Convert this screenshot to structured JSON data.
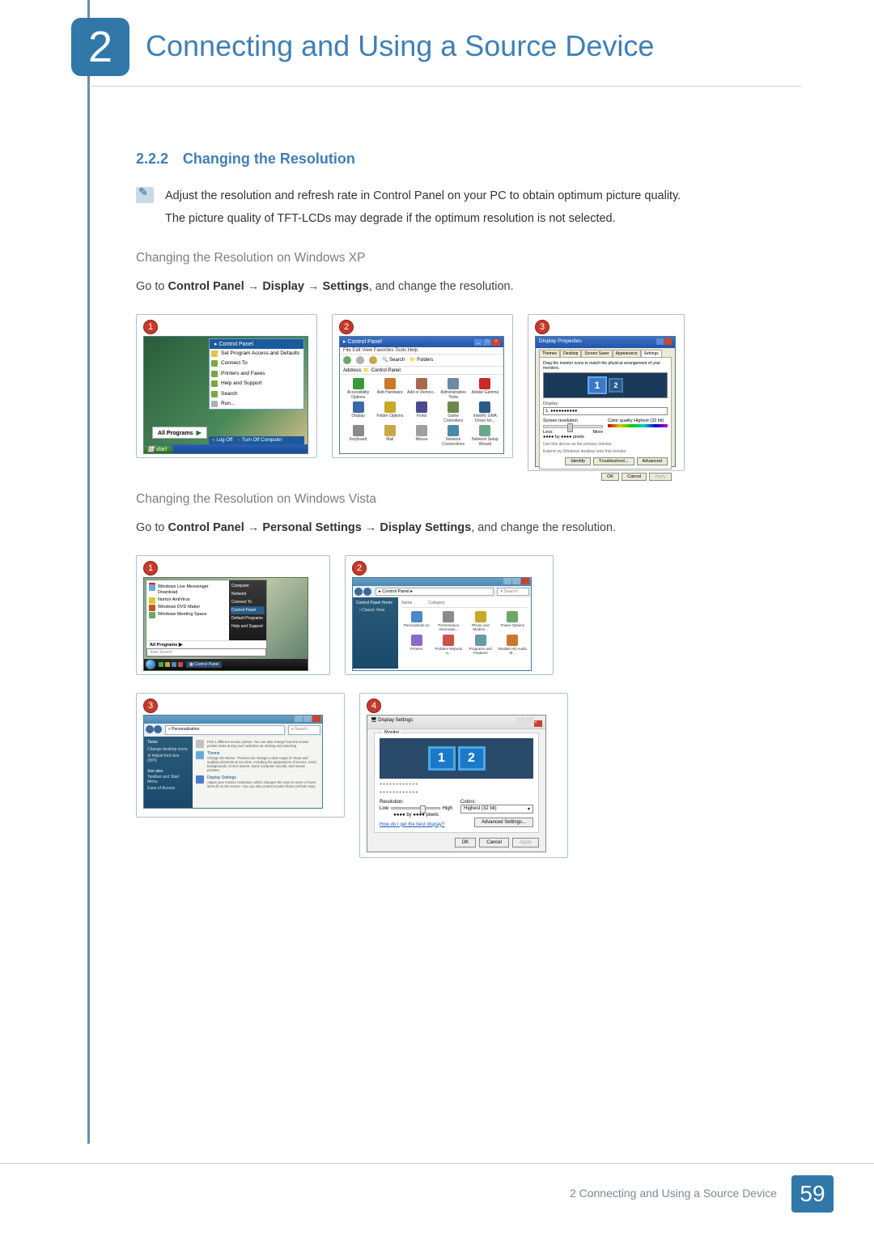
{
  "chapter": {
    "number": "2",
    "title": "Connecting and Using a Source Device"
  },
  "section": {
    "number": "2.2.2",
    "title": "Changing the Resolution"
  },
  "note": {
    "line1": "Adjust the resolution and refresh rate in Control Panel on your PC to obtain optimum picture quality.",
    "line2": "The picture quality of TFT-LCDs may degrade if the optimum resolution is not selected."
  },
  "xp": {
    "heading": "Changing the Resolution on Windows XP",
    "instr_pre": "Go to ",
    "instr_b1": "Control Panel",
    "instr_arrow": " → ",
    "instr_b2": "Display",
    "instr_b3": "Settings",
    "instr_post": ", and change the resolution.",
    "s1": {
      "badge": "1",
      "menu_header": "Control Panel",
      "items": [
        "Set Program Access and Defaults",
        "Connect To",
        "Printers and Faxes",
        "Help and Support",
        "Search",
        "Run..."
      ],
      "all_programs": "All Programs",
      "logoff": "Log Off",
      "turnoff": "Turn Off Computer",
      "start": "start"
    },
    "s2": {
      "badge": "2",
      "title": "Control Panel",
      "menus": "File  Edit  View  Favorites  Tools  Help",
      "toolbar_search": "Search",
      "toolbar_folders": "Folders",
      "addr_label": "Address",
      "addr_value": "Control Panel",
      "icons": [
        {
          "l": "Accessibility Options",
          "c": "#3a9a3a"
        },
        {
          "l": "Add Hardware",
          "c": "#c87a2a"
        },
        {
          "l": "Add or Remov...",
          "c": "#a86a4a"
        },
        {
          "l": "Administrative Tools",
          "c": "#6a8aa8"
        },
        {
          "l": "Adobe Gamma",
          "c": "#c82a2a"
        },
        {
          "l": "Display",
          "c": "#3a6aa8"
        },
        {
          "l": "Folder Options",
          "c": "#c8a82a"
        },
        {
          "l": "Fonts",
          "c": "#4a4a8a"
        },
        {
          "l": "Game Controllers",
          "c": "#6a8a4a"
        },
        {
          "l": "Intel(R) GMA Driver for...",
          "c": "#2a5a8a"
        },
        {
          "l": "Keyboard",
          "c": "#8a8a8a"
        },
        {
          "l": "Mail",
          "c": "#c8a84a"
        },
        {
          "l": "Mouse",
          "c": "#a0a0a0"
        },
        {
          "l": "Network Connections",
          "c": "#4a8aa8"
        },
        {
          "l": "Network Setup Wizard",
          "c": "#6aa88a"
        }
      ]
    },
    "s3": {
      "badge": "3",
      "title": "Display Properties",
      "tabs": [
        "Themes",
        "Desktop",
        "Screen Saver",
        "Appearance",
        "Settings"
      ],
      "arrange": "Drag the monitor icons to match the physical arrangement of your monitors.",
      "mon1": "1",
      "mon2": "2",
      "display_label": "Display:",
      "display_value": "1. ●●●●●●●●●●",
      "res_label": "Screen resolution",
      "res_less": "Less",
      "res_more": "More",
      "res_value": "●●●● by ●●●● pixels",
      "color_label": "Color quality",
      "color_value": "Highest (32 bit)",
      "check1": "Use this device as the primary monitor",
      "check2": "Extend my Windows desktop onto this monitor",
      "btn_identify": "Identify",
      "btn_trouble": "Troubleshoot...",
      "btn_adv": "Advanced",
      "btn_ok": "OK",
      "btn_cancel": "Cancel",
      "btn_apply": "Apply"
    }
  },
  "vista": {
    "heading": "Changing the Resolution on Windows Vista",
    "instr_pre": "Go to ",
    "instr_b1": "Control Panel",
    "instr_b2": "Personal Settings",
    "instr_b3": "Display Settings",
    "instr_arrow": " → ",
    "instr_post": ", and change the resolution.",
    "s1": {
      "badge": "1",
      "left_items": [
        {
          "l": "",
          "c": "#c82a2a"
        },
        {
          "l": "Windows Live Messenger Download",
          "c": "#6aa8d8"
        },
        {
          "l": "Norton AntiVirus",
          "c": "#d8c82a"
        },
        {
          "l": "Windows DVD Maker",
          "c": "#c8532a"
        },
        {
          "l": "Windows Meeting Space",
          "c": "#6aa86a"
        }
      ],
      "allprog": "All Programs",
      "search_ph": "Start Search",
      "right_items": [
        "Computer",
        "Network",
        "Connect To",
        "Control Panel",
        "Default Programs",
        "Help and Support"
      ],
      "taskbar_item": "Control Panel",
      "ticon_colors": [
        "#4aa84a",
        "#c8a82a",
        "#4a8ac8",
        "#c84a4a"
      ]
    },
    "s2": {
      "badge": "2",
      "path": "▸ Control Panel ▸",
      "search": "Search",
      "side_header": "Control Panel Home",
      "side_items": [
        "Classic View"
      ],
      "col1": "Name",
      "col2": "Category",
      "icons": [
        {
          "l": "Personalizati on",
          "c": "#4a8ac8"
        },
        {
          "l": "Performance Informatio...",
          "c": "#8a8a8a"
        },
        {
          "l": "Phone and Modem...",
          "c": "#c8a82a"
        },
        {
          "l": "Power Options",
          "c": "#6aa86a"
        },
        {
          "l": "Printers",
          "c": "#8a6ac8"
        },
        {
          "l": "Problem Reports a...",
          "c": "#c8534a"
        },
        {
          "l": "Programs and Features",
          "c": "#6a9aa8"
        },
        {
          "l": "Realtek HD Audio M...",
          "c": "#c87a2a"
        }
      ]
    },
    "s3": {
      "badge": "3",
      "path": "« Personalization",
      "search": "Search",
      "tasks_header": "Tasks",
      "tasks": [
        "Change desktop icons",
        "Adjust font size (DPI)"
      ],
      "see_also": "See also",
      "see_items": [
        "Taskbar and Start Menu",
        "Ease of Access"
      ],
      "entries": [
        {
          "t": "",
          "d": "Pick a different mouse pointer. You can also change how the mouse pointer looks during such activities as clicking and selecting.",
          "c": "#c0c0c0"
        },
        {
          "t": "Theme",
          "d": "Change the theme. Themes can change a wide range of visual and auditory elements at one time, including the appearance of menus, icons, backgrounds, screen savers, some computer sounds, and mouse pointers.",
          "c": "#6aa8d8"
        },
        {
          "t": "Display Settings",
          "d": "Adjust your monitor resolution, which changes the view so more or fewer items fit on the screen. You can also control monitor flicker (refresh rate).",
          "c": "#4a7ac8"
        }
      ]
    },
    "s4": {
      "badge": "4",
      "title": "Display Settings",
      "group": "Monitor",
      "mon1": "1",
      "mon2": "2",
      "dots1": "●●●●●●●●●●●●",
      "dots2": "●●●●●●●●●●●●",
      "res_label": "Resolution:",
      "res_low": "Low",
      "res_high": "High",
      "res_value": "●●●● by ●●●● pixels",
      "color_label": "Colors:",
      "color_value": "Highest (32 bit)",
      "link": "How do I get the best display?",
      "btn_adv": "Advanced Settings...",
      "btn_ok": "OK",
      "btn_cancel": "Cancel",
      "btn_apply": "Apply"
    }
  },
  "footer": {
    "text": "2 Connecting and Using a Source Device",
    "page": "59"
  }
}
